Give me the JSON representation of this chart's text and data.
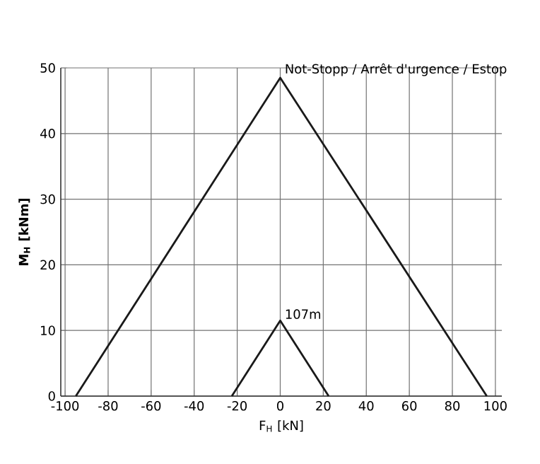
{
  "chart_data": {
    "type": "line",
    "xlabel": "F$_{H}$ [kN]",
    "ylabel": "M$_{H}$ [kNm]",
    "xlim": [
      -102,
      103
    ],
    "ylim": [
      0,
      50
    ],
    "xticks": [
      -100,
      -80,
      -60,
      -40,
      -20,
      0,
      20,
      40,
      60,
      80,
      100
    ],
    "yticks": [
      0,
      10,
      20,
      30,
      40,
      50
    ],
    "grid": true,
    "marker": "none",
    "line_style": "solid",
    "series": [
      {
        "color": "#1a1a1a",
        "x": [
          -95,
          0,
          96
        ],
        "values": [
          0,
          48.5,
          0
        ]
      },
      {
        "color": "#1a1a1a",
        "x": [
          -22.5,
          0,
          22.5
        ],
        "values": [
          0,
          11.5,
          0
        ]
      }
    ],
    "annotations": [
      {
        "text": "Not-Stopp / Arrêt d'urgence / Estop",
        "x": 0,
        "y": 48.5
      },
      {
        "text": "107m",
        "x": 0,
        "y": 11.5
      }
    ]
  }
}
